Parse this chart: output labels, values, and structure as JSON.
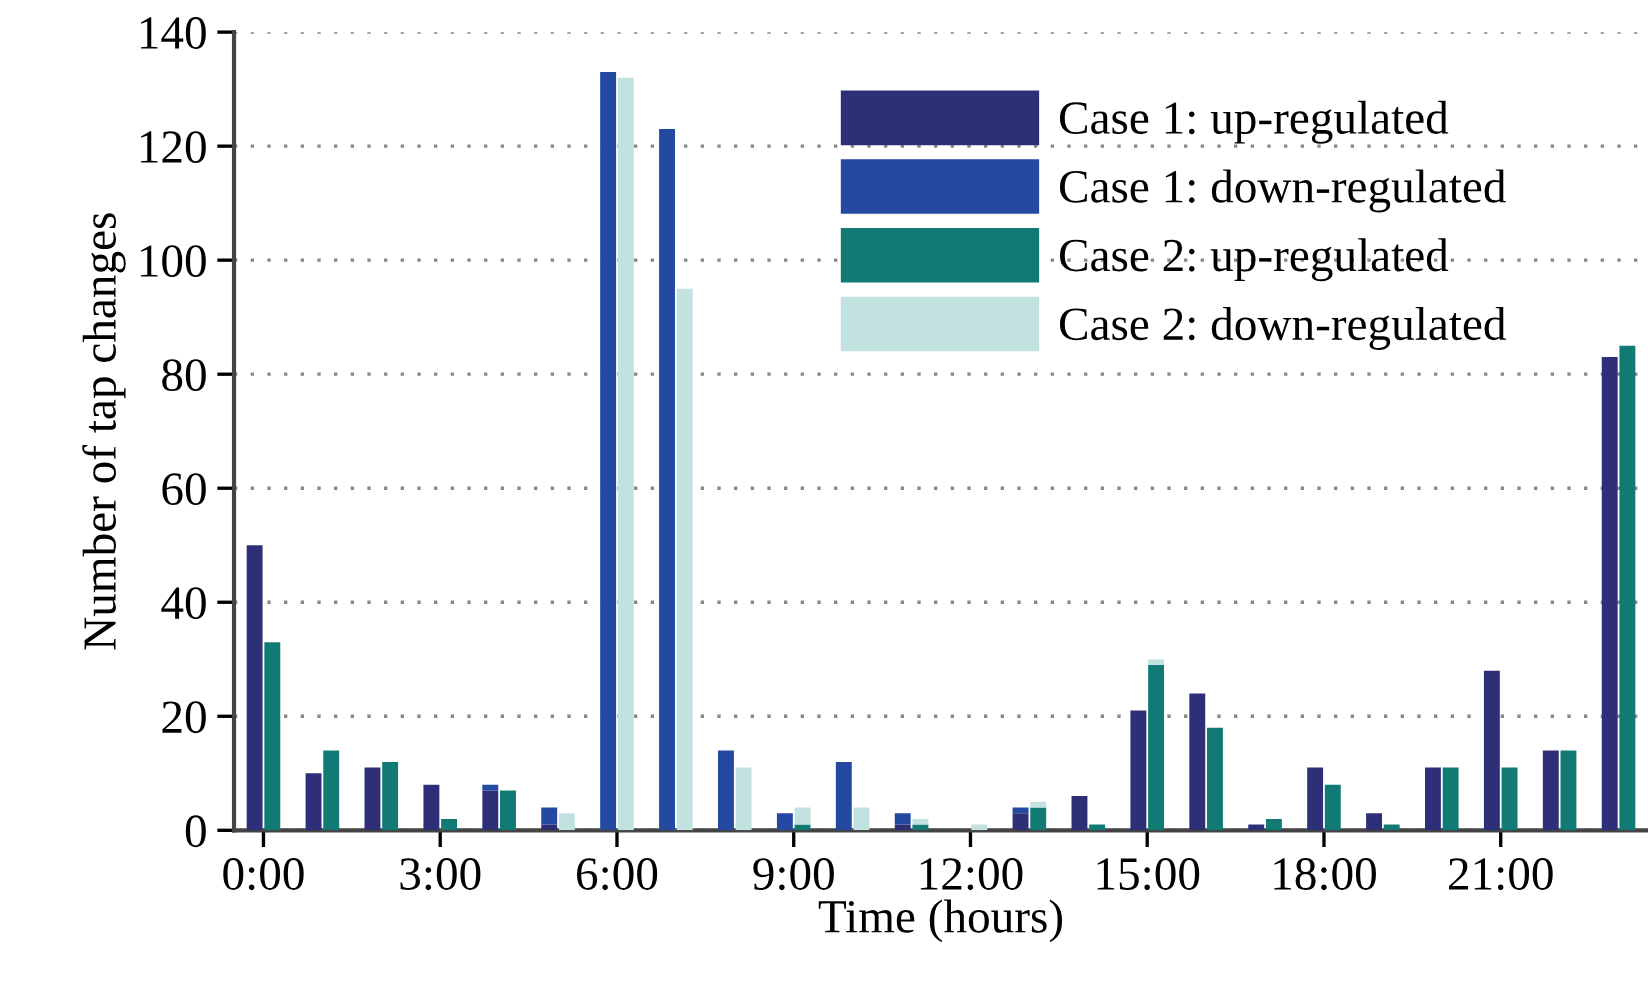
{
  "chart_data": {
    "type": "bar",
    "xlabel": "Time (hours)",
    "ylabel": "Number of tap changes",
    "categories": [
      "0:00",
      null,
      null,
      "3:00",
      null,
      null,
      "6:00",
      null,
      null,
      "9:00",
      null,
      null,
      "12:00",
      null,
      null,
      "15:00",
      null,
      null,
      "18:00",
      null,
      null,
      "21:00",
      null,
      null
    ],
    "series": [
      {
        "name": "Case 1: up-regulated",
        "color": "#2e3077",
        "values": [
          50,
          10,
          11,
          8,
          7,
          1,
          0,
          0,
          0,
          0,
          0,
          1,
          0,
          3,
          6,
          21,
          24,
          1,
          11,
          3,
          11,
          28,
          14,
          83
        ]
      },
      {
        "name": "Case 1: down-regulated",
        "color": "#2349a0",
        "values": [
          0,
          0,
          0,
          0,
          1,
          3,
          133,
          123,
          14,
          3,
          12,
          2,
          0,
          1,
          0,
          0,
          0,
          0,
          0,
          0,
          0,
          0,
          0,
          0
        ],
        "base": [
          null,
          null,
          null,
          null,
          7,
          1,
          0,
          0,
          0,
          0,
          0,
          1,
          null,
          3,
          null,
          null,
          null,
          null,
          null,
          null,
          null,
          null,
          null,
          null
        ]
      },
      {
        "name": "Case 2: up-regulated",
        "color": "#117a74",
        "values": [
          33,
          14,
          12,
          2,
          7,
          0,
          0,
          0,
          0,
          1,
          0,
          1,
          0,
          4,
          1,
          29,
          18,
          2,
          8,
          1,
          11,
          11,
          14,
          85
        ]
      },
      {
        "name": "Case 2: down-regulated",
        "color": "#c2e2e0",
        "values": [
          0,
          0,
          0,
          0,
          0,
          3,
          132,
          95,
          11,
          3,
          4,
          1,
          1,
          1,
          0,
          1,
          0,
          0,
          0,
          0,
          0,
          0,
          0,
          0
        ],
        "base": [
          null,
          null,
          null,
          null,
          null,
          0,
          0,
          0,
          0,
          1,
          0,
          1,
          0,
          4,
          null,
          29,
          null,
          null,
          null,
          null,
          null,
          null,
          null,
          null
        ]
      }
    ],
    "ylim": [
      0,
      140
    ],
    "yticks": [
      0,
      20,
      40,
      60,
      80,
      100,
      120,
      140
    ],
    "grid": "y",
    "legend": "top right"
  }
}
